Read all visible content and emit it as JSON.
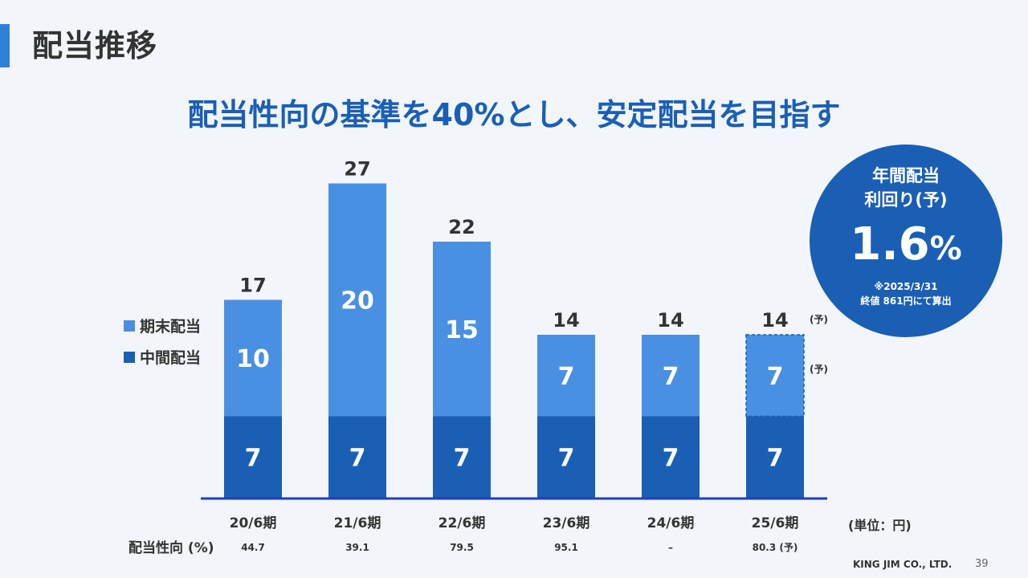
{
  "title": "配当推移",
  "headline": "配当性向の基準を40%とし、安定配当を目指す",
  "legend": {
    "final": "期末配当",
    "interim": "中間配当"
  },
  "badge": {
    "line1": "年間配当",
    "line2": "利回り(予)",
    "value": "1.6",
    "unit": "%",
    "note1": "※2025/3/31",
    "note2": "終値 861円にて算出"
  },
  "unit_label": "(単位：円)",
  "payout_label": "配当性向 (%)",
  "forecast_mark": "(予)",
  "company": "KING JIM CO., LTD.",
  "page_number": "39",
  "colors": {
    "interim": "#1a5fb4",
    "final": "#4a90e2",
    "axis": "#1f3fbf",
    "label_dark": "#333333"
  },
  "chart_data": {
    "type": "bar",
    "stacked": true,
    "categories": [
      "20/6期",
      "21/6期",
      "22/6期",
      "23/6期",
      "24/6期",
      "25/6期"
    ],
    "series": [
      {
        "name": "中間配当",
        "values": [
          7,
          7,
          7,
          7,
          7,
          7
        ]
      },
      {
        "name": "期末配当",
        "values": [
          10,
          20,
          15,
          7,
          7,
          7
        ]
      }
    ],
    "totals": [
      17,
      27,
      22,
      14,
      14,
      14
    ],
    "payout_ratio": [
      "44.7",
      "39.1",
      "79.5",
      "95.1",
      "–",
      "80.3 (予)"
    ],
    "forecast_index": 5,
    "ylim": [
      0,
      27
    ]
  }
}
